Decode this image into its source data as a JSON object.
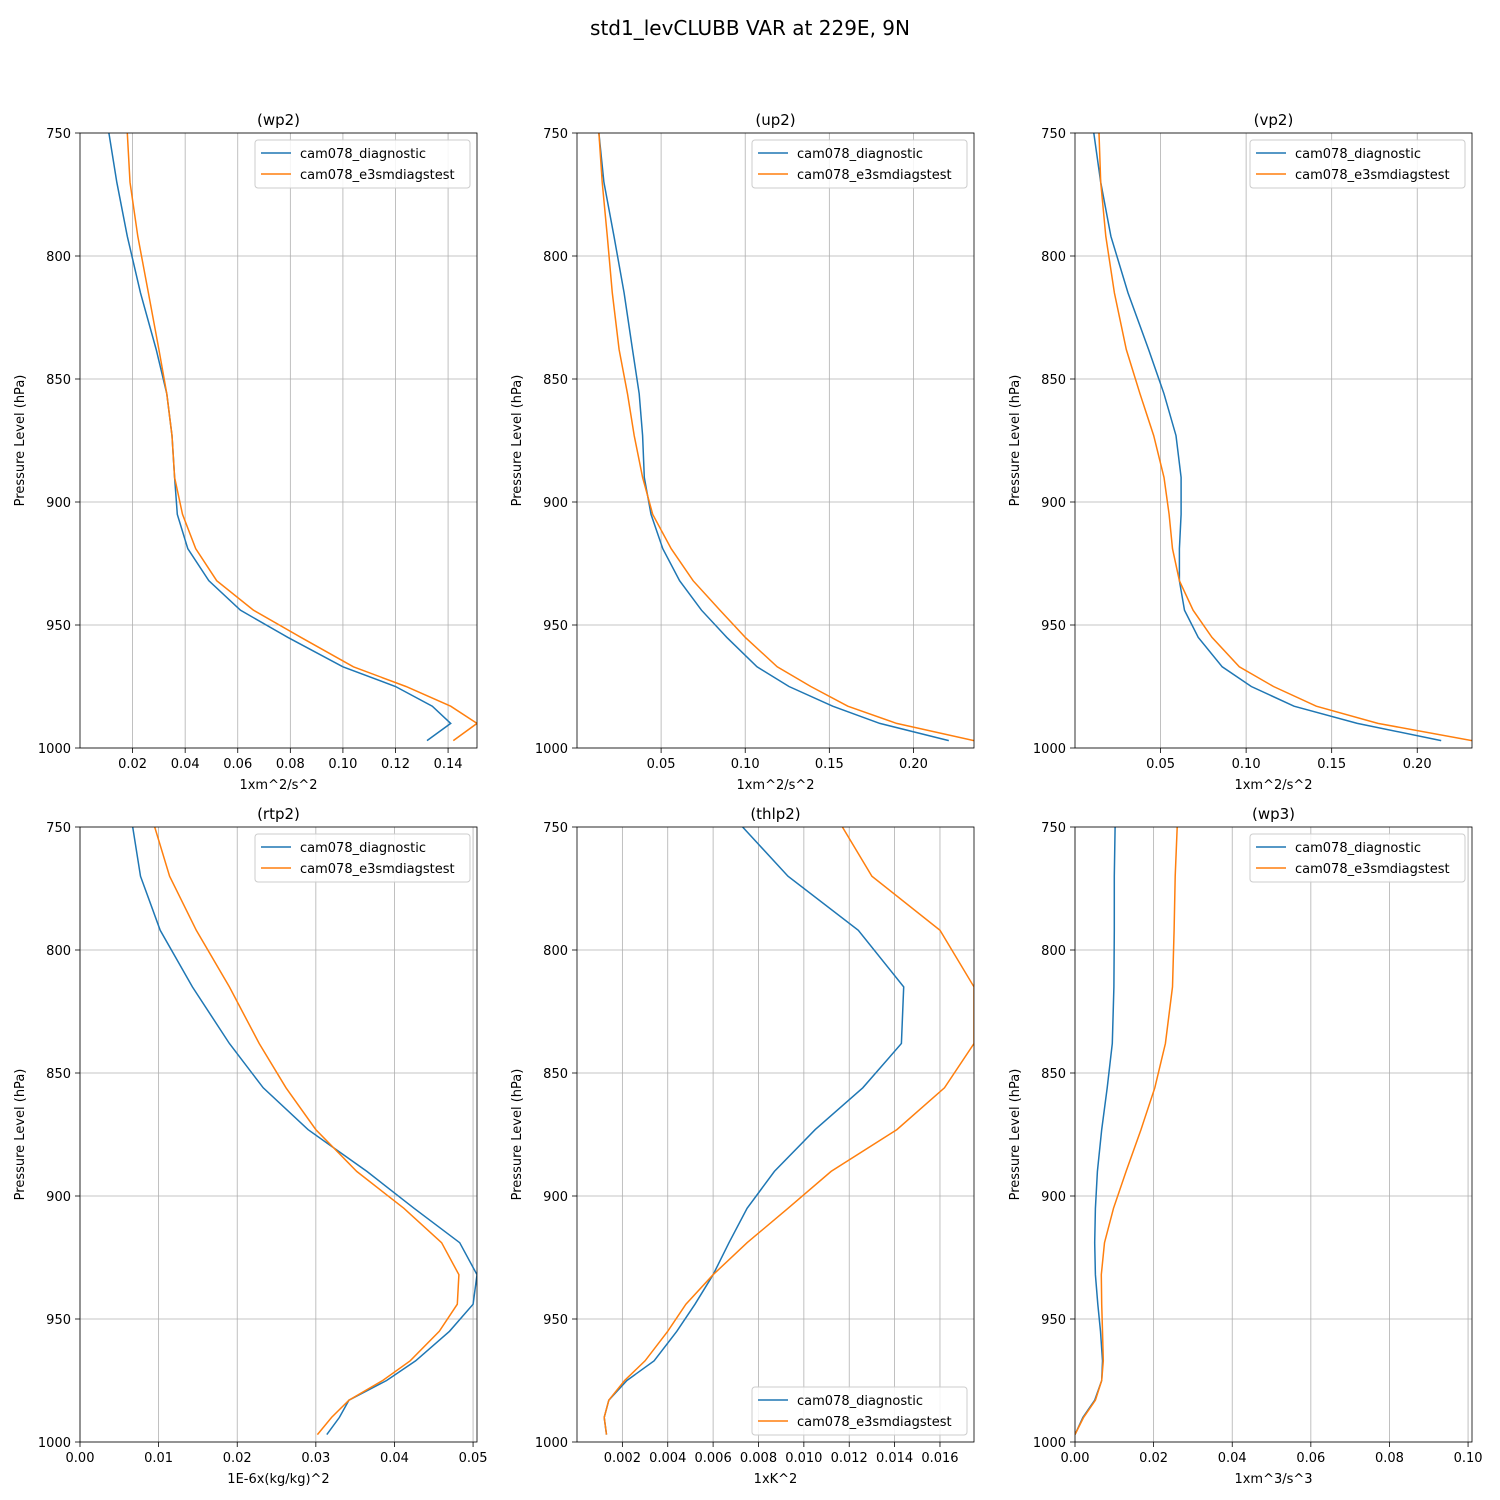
{
  "figure_title": "std1_levCLUBB VAR at 229E, 9N",
  "colors": {
    "cam078_diagnostic": "#1f77b4",
    "cam078_e3smdiagstest": "#ff7f0e",
    "grid": "#b0b0b0"
  },
  "chart_data": [
    {
      "type": "line",
      "title": "(wp2)",
      "xlabel": "1xm^2/s^2",
      "ylabel": "Pressure Level (hPa)",
      "xlim": [
        0.0,
        0.151
      ],
      "ylim": [
        1000,
        750
      ],
      "xticks": [
        0.02,
        0.04,
        0.06,
        0.08,
        0.1,
        0.12,
        0.14
      ],
      "xtick_labels": [
        "0.02",
        "0.04",
        "0.06",
        "0.08",
        "0.10",
        "0.12",
        "0.14"
      ],
      "yticks": [
        750,
        800,
        850,
        900,
        950,
        1000
      ],
      "ytick_labels": [
        "750",
        "800",
        "850",
        "900",
        "950",
        "1000"
      ],
      "grid": true,
      "legend": "upper right",
      "series": [
        {
          "name": "cam078_diagnostic",
          "x": [
            0.011,
            0.014,
            0.018,
            0.023,
            0.029,
            0.033,
            0.035,
            0.036,
            0.037,
            0.041,
            0.049,
            0.061,
            0.079,
            0.1,
            0.12,
            0.134,
            0.141,
            0.132
          ],
          "y": [
            750,
            770,
            792,
            815,
            838,
            856,
            873,
            890,
            905,
            919,
            932,
            944,
            955,
            967,
            975,
            983,
            990,
            997
          ]
        },
        {
          "name": "cam078_e3smdiagstest",
          "x": [
            0.018,
            0.019,
            0.022,
            0.026,
            0.03,
            0.033,
            0.035,
            0.036,
            0.039,
            0.044,
            0.052,
            0.066,
            0.084,
            0.104,
            0.124,
            0.141,
            0.151,
            0.142
          ],
          "y": [
            750,
            770,
            792,
            815,
            838,
            856,
            873,
            890,
            905,
            919,
            932,
            944,
            955,
            967,
            975,
            983,
            990,
            997
          ]
        }
      ]
    },
    {
      "type": "line",
      "title": "(up2)",
      "xlabel": "1xm^2/s^2",
      "ylabel": "Pressure Level (hPa)",
      "xlim": [
        0.0,
        0.236
      ],
      "ylim": [
        1000,
        750
      ],
      "xticks": [
        0.05,
        0.1,
        0.15,
        0.2
      ],
      "xtick_labels": [
        "0.05",
        "0.10",
        "0.15",
        "0.20"
      ],
      "yticks": [
        750,
        800,
        850,
        900,
        950,
        1000
      ],
      "ytick_labels": [
        "750",
        "800",
        "850",
        "900",
        "950",
        "1000"
      ],
      "grid": true,
      "legend": "upper right",
      "series": [
        {
          "name": "cam078_diagnostic",
          "x": [
            0.013,
            0.016,
            0.022,
            0.028,
            0.033,
            0.037,
            0.039,
            0.04,
            0.044,
            0.051,
            0.061,
            0.074,
            0.089,
            0.107,
            0.126,
            0.152,
            0.18,
            0.221
          ],
          "y": [
            750,
            770,
            792,
            815,
            838,
            856,
            873,
            890,
            905,
            919,
            932,
            944,
            955,
            967,
            975,
            983,
            990,
            997
          ]
        },
        {
          "name": "cam078_e3smdiagstest",
          "x": [
            0.013,
            0.015,
            0.018,
            0.021,
            0.025,
            0.03,
            0.034,
            0.039,
            0.045,
            0.056,
            0.069,
            0.085,
            0.1,
            0.119,
            0.139,
            0.161,
            0.19,
            0.236
          ],
          "y": [
            750,
            770,
            792,
            815,
            838,
            856,
            873,
            890,
            905,
            919,
            932,
            944,
            955,
            967,
            975,
            983,
            990,
            997
          ]
        }
      ]
    },
    {
      "type": "line",
      "title": "(vp2)",
      "xlabel": "1xm^2/s^2",
      "ylabel": "Pressure Level (hPa)",
      "xlim": [
        0.0,
        0.232
      ],
      "ylim": [
        1000,
        750
      ],
      "xticks": [
        0.05,
        0.1,
        0.15,
        0.2
      ],
      "xtick_labels": [
        "0.05",
        "0.10",
        "0.15",
        "0.20"
      ],
      "yticks": [
        750,
        800,
        850,
        900,
        950,
        1000
      ],
      "ytick_labels": [
        "750",
        "800",
        "850",
        "900",
        "950",
        "1000"
      ],
      "grid": true,
      "legend": "upper right",
      "series": [
        {
          "name": "cam078_diagnostic",
          "x": [
            0.011,
            0.015,
            0.021,
            0.031,
            0.043,
            0.052,
            0.059,
            0.062,
            0.062,
            0.061,
            0.061,
            0.064,
            0.072,
            0.086,
            0.103,
            0.128,
            0.165,
            0.214
          ],
          "y": [
            750,
            770,
            792,
            815,
            838,
            856,
            873,
            890,
            905,
            919,
            932,
            944,
            955,
            967,
            975,
            983,
            990,
            997
          ]
        },
        {
          "name": "cam078_e3smdiagstest",
          "x": [
            0.014,
            0.015,
            0.018,
            0.023,
            0.03,
            0.038,
            0.046,
            0.052,
            0.055,
            0.057,
            0.061,
            0.069,
            0.08,
            0.096,
            0.116,
            0.141,
            0.177,
            0.232
          ],
          "y": [
            750,
            770,
            792,
            815,
            838,
            856,
            873,
            890,
            905,
            919,
            932,
            944,
            955,
            967,
            975,
            983,
            990,
            997
          ]
        }
      ]
    },
    {
      "type": "line",
      "title": "(rtp2)",
      "xlabel": "1E-6x(kg/kg)^2",
      "ylabel": "Pressure Level (hPa)",
      "xlim": [
        0.0,
        0.0505
      ],
      "ylim": [
        1000,
        750
      ],
      "xticks": [
        0.0,
        0.01,
        0.02,
        0.03,
        0.04,
        0.05
      ],
      "xtick_labels": [
        "0.00",
        "0.01",
        "0.02",
        "0.03",
        "0.04",
        "0.05"
      ],
      "yticks": [
        750,
        800,
        850,
        900,
        950,
        1000
      ],
      "ytick_labels": [
        "750",
        "800",
        "850",
        "900",
        "950",
        "1000"
      ],
      "grid": true,
      "legend": "upper right",
      "series": [
        {
          "name": "cam078_diagnostic",
          "x": [
            0.0067,
            0.0077,
            0.0102,
            0.0143,
            0.019,
            0.0233,
            0.029,
            0.0365,
            0.0425,
            0.0483,
            0.0505,
            0.05,
            0.047,
            0.0427,
            0.039,
            0.0342,
            0.033,
            0.0314
          ],
          "y": [
            750,
            770,
            792,
            815,
            838,
            856,
            873,
            890,
            905,
            919,
            932,
            944,
            955,
            967,
            975,
            983,
            990,
            997
          ]
        },
        {
          "name": "cam078_e3smdiagstest",
          "x": [
            0.0095,
            0.0114,
            0.0148,
            0.019,
            0.0228,
            0.0262,
            0.03,
            0.0352,
            0.0412,
            0.046,
            0.0482,
            0.048,
            0.0457,
            0.042,
            0.0385,
            0.0342,
            0.032,
            0.0302
          ],
          "y": [
            750,
            770,
            792,
            815,
            838,
            856,
            873,
            890,
            905,
            919,
            932,
            944,
            955,
            967,
            975,
            983,
            990,
            997
          ]
        }
      ]
    },
    {
      "type": "line",
      "title": "(thlp2)",
      "xlabel": "1xK^2",
      "ylabel": "Pressure Level (hPa)",
      "xlim": [
        0.0,
        0.0175
      ],
      "ylim": [
        1000,
        750
      ],
      "xticks": [
        0.002,
        0.004,
        0.006,
        0.008,
        0.01,
        0.012,
        0.014,
        0.016
      ],
      "xtick_labels": [
        "0.002",
        "0.004",
        "0.006",
        "0.008",
        "0.010",
        "0.012",
        "0.014",
        "0.016"
      ],
      "yticks": [
        750,
        800,
        850,
        900,
        950,
        1000
      ],
      "ytick_labels": [
        "750",
        "800",
        "850",
        "900",
        "950",
        "1000"
      ],
      "grid": true,
      "legend": "lower right",
      "series": [
        {
          "name": "cam078_diagnostic",
          "x": [
            0.0073,
            0.0093,
            0.0124,
            0.0144,
            0.0143,
            0.0126,
            0.0105,
            0.0087,
            0.0075,
            0.0067,
            0.006,
            0.0052,
            0.0044,
            0.0034,
            0.0022,
            0.0014,
            0.0012,
            0.0013
          ],
          "y": [
            750,
            770,
            792,
            815,
            838,
            856,
            873,
            890,
            905,
            919,
            932,
            944,
            955,
            967,
            975,
            983,
            990,
            997
          ]
        },
        {
          "name": "cam078_e3smdiagstest",
          "x": [
            0.0117,
            0.013,
            0.016,
            0.0175,
            0.0175,
            0.0162,
            0.0141,
            0.0112,
            0.0093,
            0.0075,
            0.006,
            0.0048,
            0.004,
            0.003,
            0.0021,
            0.0014,
            0.0012,
            0.0013
          ],
          "y": [
            750,
            770,
            792,
            815,
            838,
            856,
            873,
            890,
            905,
            919,
            932,
            944,
            955,
            967,
            975,
            983,
            990,
            997
          ]
        }
      ]
    },
    {
      "type": "line",
      "title": "(wp3)",
      "xlabel": "1xm^3/s^3",
      "ylabel": "Pressure Level (hPa)",
      "xlim": [
        0.0,
        0.101
      ],
      "ylim": [
        1000,
        750
      ],
      "xticks": [
        0.0,
        0.02,
        0.04,
        0.06,
        0.08,
        0.1
      ],
      "xtick_labels": [
        "0.00",
        "0.02",
        "0.04",
        "0.06",
        "0.08",
        "0.10"
      ],
      "yticks": [
        750,
        800,
        850,
        900,
        950,
        1000
      ],
      "ytick_labels": [
        "750",
        "800",
        "850",
        "900",
        "950",
        "1000"
      ],
      "grid": true,
      "legend": "upper right",
      "series": [
        {
          "name": "cam078_diagnostic",
          "x": [
            0.0102,
            0.01,
            0.01,
            0.0099,
            0.0095,
            0.0082,
            0.0068,
            0.0057,
            0.0052,
            0.005,
            0.0052,
            0.0058,
            0.0065,
            0.007,
            0.0068,
            0.005,
            0.002,
            0.0
          ],
          "y": [
            750,
            770,
            792,
            815,
            838,
            856,
            873,
            890,
            905,
            919,
            932,
            944,
            955,
            967,
            975,
            983,
            990,
            997
          ]
        },
        {
          "name": "cam078_e3smdiagstest",
          "x": [
            0.026,
            0.0255,
            0.0252,
            0.0248,
            0.023,
            0.0203,
            0.0168,
            0.013,
            0.0098,
            0.0075,
            0.0067,
            0.0068,
            0.007,
            0.0072,
            0.0068,
            0.0052,
            0.0022,
            0.0
          ],
          "y": [
            750,
            770,
            792,
            815,
            838,
            856,
            873,
            890,
            905,
            919,
            932,
            944,
            955,
            967,
            975,
            983,
            990,
            997
          ]
        }
      ]
    }
  ]
}
